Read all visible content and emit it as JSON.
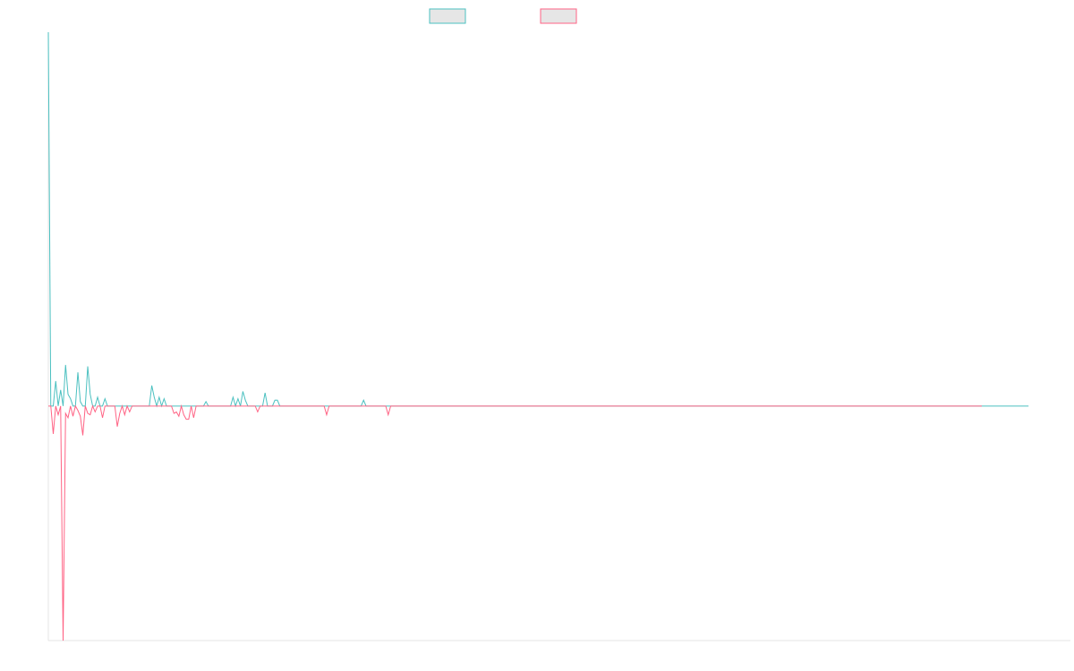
{
  "chart_data": {
    "type": "line",
    "title": "",
    "xlabel": "",
    "ylabel": "",
    "grid": false,
    "legend_position": "top-center",
    "x_range": [
      0,
      415
    ],
    "y_range": [
      -160,
      255
    ],
    "series": [
      {
        "color": "#4bc0c0",
        "fill_color": "#e6e6e6",
        "values": [
          255,
          0,
          0,
          17,
          0,
          11,
          0,
          28,
          8,
          5,
          0,
          0,
          23,
          3,
          0,
          0,
          27,
          8,
          0,
          0,
          6,
          0,
          0,
          5,
          0,
          0,
          0,
          0,
          0,
          0,
          0,
          0,
          0,
          0,
          0,
          0,
          0,
          0,
          0,
          0,
          0,
          0,
          14,
          6,
          0,
          6,
          0,
          5,
          0,
          0,
          0,
          0,
          0,
          0,
          0,
          0,
          0,
          0,
          0,
          0,
          0,
          0,
          0,
          0,
          3,
          0,
          0,
          0,
          0,
          0,
          0,
          0,
          0,
          0,
          0,
          6,
          0,
          5,
          0,
          10,
          4,
          0,
          0,
          0,
          0,
          0,
          0,
          0,
          9,
          0,
          0,
          0,
          4,
          4,
          0,
          0,
          0,
          0,
          0,
          0,
          0,
          0,
          0,
          0,
          0,
          0,
          0,
          0,
          0,
          0,
          0,
          0,
          0,
          0,
          0,
          0,
          0,
          0,
          0,
          0,
          0,
          0,
          0,
          0,
          0,
          0,
          0,
          0,
          4,
          0,
          0,
          0,
          0,
          0,
          0,
          0,
          0,
          0,
          0,
          0,
          0,
          0,
          0,
          0,
          0,
          0,
          0,
          0,
          0,
          0,
          0,
          0,
          0,
          0,
          0,
          0,
          0,
          0,
          0,
          0,
          0,
          0,
          0,
          0,
          0,
          0,
          0,
          0,
          0,
          0,
          0,
          0,
          0,
          0,
          0,
          0,
          0,
          0,
          0,
          0,
          0,
          0,
          0,
          0,
          0,
          0,
          0,
          0,
          0,
          0,
          0,
          0,
          0,
          0,
          0,
          0,
          0,
          0,
          0,
          0,
          0,
          0,
          0,
          0,
          0,
          0,
          0,
          0,
          0,
          0,
          0,
          0,
          0,
          0,
          0,
          0,
          0,
          0,
          0,
          0,
          0,
          0,
          0,
          0,
          0,
          0,
          0,
          0,
          0,
          0,
          0,
          0,
          0,
          0,
          0,
          0,
          0,
          0,
          0,
          0,
          0,
          0,
          0,
          0,
          0,
          0,
          0,
          0,
          0,
          0,
          0,
          0,
          0,
          0,
          0,
          0,
          0,
          0,
          0,
          0,
          0,
          0,
          0,
          0,
          0,
          0,
          0,
          0,
          0,
          0,
          0,
          0,
          0,
          0,
          0,
          0,
          0,
          0,
          0,
          0,
          0,
          0,
          0,
          0,
          0,
          0,
          0,
          0,
          0,
          0,
          0,
          0,
          0,
          0,
          0,
          0,
          0,
          0,
          0,
          0,
          0,
          0,
          0,
          0,
          0,
          0,
          0,
          0,
          0,
          0,
          0,
          0,
          0,
          0,
          0,
          0,
          0,
          0,
          0,
          0,
          0,
          0,
          0,
          0,
          0,
          0,
          0,
          0,
          0,
          0,
          0,
          0,
          0,
          0,
          0,
          0,
          0,
          0,
          0,
          0,
          0,
          0,
          0,
          0,
          0,
          0,
          0,
          0,
          0,
          0,
          0,
          0,
          0,
          0,
          0,
          0,
          0,
          0,
          0,
          0,
          0,
          0,
          0,
          0,
          0,
          0,
          0,
          0,
          0,
          0,
          0,
          0,
          0,
          0,
          0,
          0,
          0,
          0,
          0,
          0,
          0,
          0,
          0,
          0,
          0,
          0,
          0,
          0,
          0,
          0,
          0,
          0,
          0,
          0,
          0,
          0,
          0,
          0,
          0
        ]
      },
      {
        "color": "#ff6384",
        "fill_color": "#e6e6e6",
        "values": [
          0,
          0,
          -19,
          0,
          -6,
          0,
          -160,
          -5,
          -8,
          0,
          -7,
          0,
          -3,
          -7,
          -20,
          0,
          -5,
          -6,
          0,
          -4,
          0,
          0,
          -8,
          0,
          0,
          0,
          0,
          0,
          -14,
          -5,
          0,
          -6,
          0,
          -4,
          0,
          0,
          0,
          0,
          0,
          0,
          0,
          0,
          0,
          0,
          0,
          0,
          0,
          0,
          0,
          0,
          0,
          -5,
          -4,
          -7,
          0,
          -6,
          -9,
          -9,
          0,
          -8,
          0,
          0,
          0,
          0,
          0,
          0,
          0,
          0,
          0,
          0,
          0,
          0,
          0,
          0,
          0,
          0,
          0,
          0,
          0,
          0,
          0,
          0,
          0,
          0,
          0,
          -4,
          0,
          0,
          0,
          0,
          0,
          0,
          0,
          0,
          0,
          0,
          0,
          0,
          0,
          0,
          0,
          0,
          0,
          0,
          0,
          0,
          0,
          0,
          0,
          0,
          0,
          0,
          0,
          -6,
          0,
          0,
          0,
          0,
          0,
          0,
          0,
          0,
          0,
          0,
          0,
          0,
          0,
          0,
          0,
          0,
          0,
          0,
          0,
          0,
          0,
          0,
          0,
          0,
          -6,
          0,
          0,
          0,
          0,
          0,
          0,
          0,
          0,
          0,
          0,
          0,
          0,
          0,
          0,
          0,
          0,
          0,
          0,
          0,
          0,
          0,
          0,
          0,
          0,
          0,
          0,
          0,
          0,
          0,
          0,
          0,
          0,
          0,
          0,
          0,
          0,
          0,
          0,
          0,
          0,
          0,
          0,
          0,
          0,
          0,
          0,
          0,
          0,
          0,
          0,
          0,
          0,
          0,
          0,
          0,
          0,
          0,
          0,
          0,
          0,
          0,
          0,
          0,
          0,
          0,
          0,
          0,
          0,
          0,
          0,
          0,
          0,
          0,
          0,
          0,
          0,
          0,
          0,
          0,
          0,
          0,
          0,
          0,
          0,
          0,
          0,
          0,
          0,
          0,
          0,
          0,
          0,
          0,
          0,
          0,
          0,
          0,
          0,
          0,
          0,
          0,
          0,
          0,
          0,
          0,
          0,
          0,
          0,
          0,
          0,
          0,
          0,
          0,
          0,
          0,
          0,
          0,
          0,
          0,
          0,
          0,
          0,
          0,
          0,
          0,
          0,
          0,
          0,
          0,
          0,
          0,
          0,
          0,
          0,
          0,
          0,
          0,
          0,
          0,
          0,
          0,
          0,
          0,
          0,
          0,
          0,
          0,
          0,
          0,
          0,
          0,
          0,
          0,
          0,
          0,
          0,
          0,
          0,
          0,
          0,
          0,
          0,
          0,
          0,
          0,
          0,
          0,
          0,
          0,
          0,
          0,
          0,
          0,
          0,
          0,
          0,
          0,
          0,
          0,
          0,
          0,
          0,
          0,
          0,
          0,
          0,
          0,
          0,
          0,
          0,
          0,
          0,
          0,
          0,
          0,
          0,
          0,
          0,
          0,
          0,
          0,
          0,
          0,
          0,
          0,
          0,
          0,
          0,
          0,
          0,
          0,
          0,
          0,
          0,
          0,
          0,
          0,
          0,
          0,
          0,
          0,
          0,
          0,
          0,
          0,
          0,
          0,
          0,
          0,
          0,
          0,
          0,
          0,
          0,
          0,
          0,
          0,
          0,
          0,
          0,
          0
        ]
      }
    ]
  }
}
